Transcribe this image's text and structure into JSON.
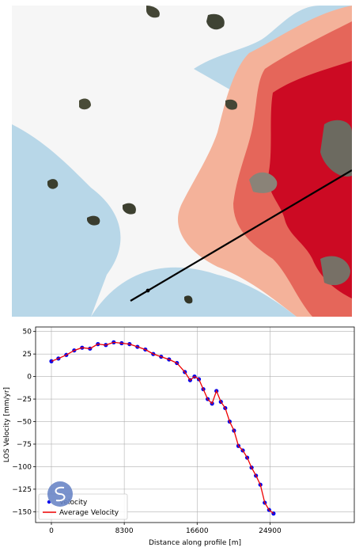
{
  "map": {
    "profile_line_color": "#000000",
    "velocity_colors": {
      "dark_red": "#cc0a23",
      "red": "#e5665a",
      "salmon": "#f4b29a",
      "white": "#f6f6f6",
      "light_blue": "#b8d7e8"
    }
  },
  "chart_data": {
    "type": "scatter",
    "xlabel": "Distance along profile [m]",
    "ylabel": "LOS Velocity [mm/yr]",
    "xlim": [
      -1800,
      34500
    ],
    "ylim": [
      -162,
      55
    ],
    "xticks": [
      0,
      8300,
      16600,
      24900
    ],
    "xtick_labels": [
      "0",
      "8300",
      "16600",
      "24900"
    ],
    "yticks": [
      50,
      25,
      0,
      -25,
      -50,
      -75,
      -100,
      -125,
      -150
    ],
    "ytick_labels": [
      "50",
      "25",
      "0",
      "−25",
      "−50",
      "−75",
      "−100",
      "−125",
      "−150"
    ],
    "grid": true,
    "legend_position": "lower-left",
    "series": [
      {
        "name": "Velocity",
        "kind": "scatter",
        "color": "#0000ee",
        "x": [
          0,
          800,
          1700,
          2600,
          3500,
          4400,
          5300,
          6200,
          7100,
          8000,
          8900,
          9800,
          10700,
          11600,
          12500,
          13400,
          14300,
          15200,
          15800,
          16300,
          16800,
          17300,
          17800,
          18300,
          18800,
          19300,
          19800,
          20300,
          20800,
          21300,
          21800,
          22300,
          22800,
          23300,
          23800,
          24300,
          24800,
          25300
        ],
        "y": [
          17,
          20,
          24,
          29,
          32,
          31,
          36,
          35,
          38,
          37,
          36,
          33,
          30,
          25,
          22,
          19,
          15,
          5,
          -4,
          0,
          -3,
          -14,
          -25,
          -30,
          -16,
          -28,
          -35,
          -50,
          -60,
          -77,
          -82,
          -90,
          -101,
          -110,
          -120,
          -140,
          -148,
          -152
        ]
      },
      {
        "name": "Average Velocity",
        "kind": "line",
        "color": "#ee0000",
        "x": [
          0,
          800,
          1700,
          2600,
          3500,
          4400,
          5300,
          6200,
          7100,
          8000,
          8900,
          9800,
          10700,
          11600,
          12500,
          13400,
          14300,
          15200,
          15800,
          16300,
          16800,
          17300,
          17800,
          18300,
          18800,
          19300,
          19800,
          20300,
          20800,
          21300,
          21800,
          22300,
          22800,
          23300,
          23800,
          24300,
          24800,
          25300
        ],
        "y": [
          17,
          20,
          24,
          29,
          32,
          31,
          36,
          35,
          38,
          37,
          36,
          33,
          30,
          25,
          22,
          19,
          15,
          5,
          -4,
          0,
          -3,
          -14,
          -25,
          -30,
          -16,
          -28,
          -35,
          -50,
          -60,
          -77,
          -82,
          -90,
          -101,
          -110,
          -120,
          -140,
          -148,
          -152
        ]
      }
    ]
  }
}
